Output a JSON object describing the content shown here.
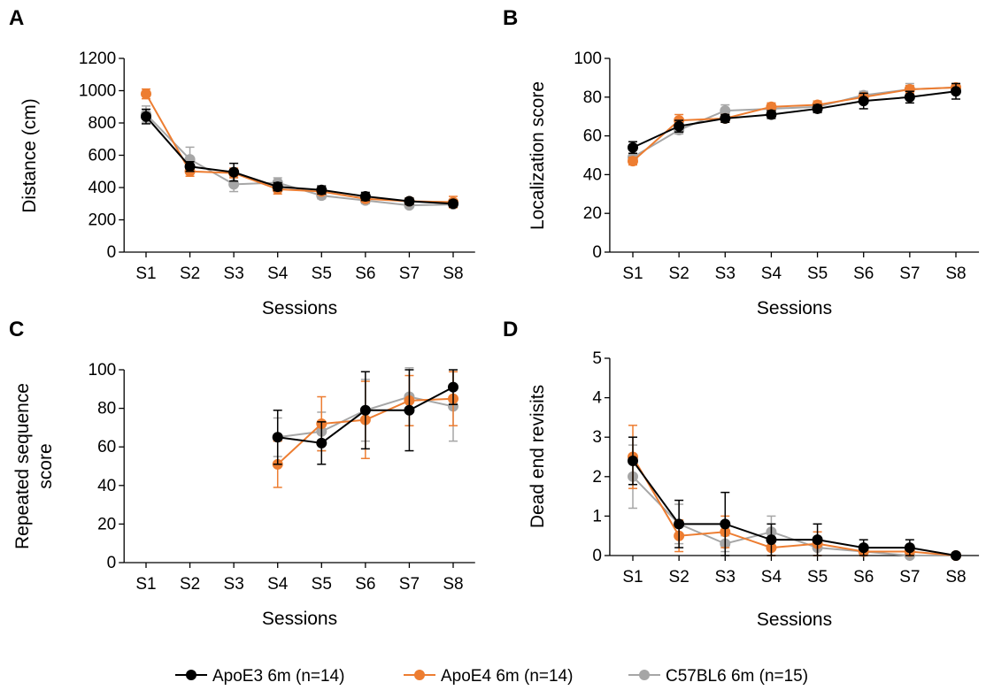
{
  "legend": [
    {
      "label": "ApoE3 6m (n=14)",
      "color": "#000000"
    },
    {
      "label": "ApoE4 6m (n=14)",
      "color": "#ED7D31"
    },
    {
      "label": "C57BL6 6m (n=15)",
      "color": "#A6A6A6"
    }
  ],
  "chart_data": [
    {
      "type": "line",
      "panel": "A",
      "xlabel": "Sessions",
      "ylabel": "Distance (cm)",
      "categories": [
        "S1",
        "S2",
        "S3",
        "S4",
        "S5",
        "S6",
        "S7",
        "S8"
      ],
      "ylim": [
        0,
        1200
      ],
      "yticks": [
        0,
        200,
        400,
        600,
        800,
        1000,
        1200
      ],
      "series": [
        {
          "name": "ApoE3 6m (n=14)",
          "color": "#000000",
          "values": [
            840,
            530,
            495,
            405,
            385,
            345,
            315,
            300
          ],
          "errors": [
            45,
            30,
            55,
            25,
            25,
            25,
            20,
            20
          ]
        },
        {
          "name": "ApoE4 6m (n=14)",
          "color": "#ED7D31",
          "values": [
            980,
            500,
            490,
            390,
            375,
            330,
            315,
            310
          ],
          "errors": [
            30,
            30,
            30,
            30,
            20,
            20,
            20,
            35
          ]
        },
        {
          "name": "C57BL6 6m (n=15)",
          "color": "#A6A6A6",
          "values": [
            855,
            575,
            420,
            430,
            350,
            320,
            290,
            295
          ],
          "errors": [
            50,
            75,
            45,
            30,
            20,
            20,
            15,
            15
          ]
        }
      ]
    },
    {
      "type": "line",
      "panel": "B",
      "xlabel": "Sessions",
      "ylabel": "Localization score",
      "categories": [
        "S1",
        "S2",
        "S3",
        "S4",
        "S5",
        "S6",
        "S7",
        "S8"
      ],
      "ylim": [
        0,
        100
      ],
      "yticks": [
        0,
        20,
        40,
        60,
        80,
        100
      ],
      "series": [
        {
          "name": "ApoE3 6m (n=14)",
          "color": "#000000",
          "values": [
            54,
            65,
            69,
            71,
            74,
            78,
            80,
            83
          ],
          "errors": [
            3,
            3,
            2,
            2,
            2,
            4,
            3,
            4
          ]
        },
        {
          "name": "ApoE4 6m (n=14)",
          "color": "#ED7D31",
          "values": [
            47,
            68,
            69,
            75,
            76,
            80,
            84,
            85
          ],
          "errors": [
            2,
            3,
            2,
            2,
            2,
            2,
            2,
            2
          ]
        },
        {
          "name": "C57BL6 6m (n=15)",
          "color": "#A6A6A6",
          "values": [
            49,
            63,
            73,
            74,
            75,
            81,
            84,
            85
          ],
          "errors": [
            2,
            2,
            3,
            2,
            2,
            2,
            3,
            2
          ]
        }
      ]
    },
    {
      "type": "line",
      "panel": "C",
      "xlabel": "Sessions",
      "ylabel": "Repeated sequence score",
      "ylabel_lines": [
        "Repeated sequence",
        "score"
      ],
      "categories": [
        "S1",
        "S2",
        "S3",
        "S4",
        "S5",
        "S6",
        "S7",
        "S8"
      ],
      "ylim": [
        0,
        100
      ],
      "yticks": [
        0,
        20,
        40,
        60,
        80,
        100
      ],
      "series": [
        {
          "name": "ApoE3 6m (n=14)",
          "color": "#000000",
          "values": [
            null,
            null,
            null,
            65,
            62,
            79,
            79,
            91
          ],
          "errors": [
            null,
            null,
            null,
            14,
            11,
            20,
            21,
            9
          ]
        },
        {
          "name": "ApoE4 6m (n=14)",
          "color": "#ED7D31",
          "values": [
            null,
            null,
            null,
            51,
            72,
            74,
            84,
            85
          ],
          "errors": [
            null,
            null,
            null,
            12,
            14,
            20,
            13,
            14
          ]
        },
        {
          "name": "C57BL6 6m (n=15)",
          "color": "#A6A6A6",
          "values": [
            null,
            null,
            null,
            65,
            68,
            79,
            86,
            81
          ],
          "errors": [
            null,
            null,
            null,
            10,
            10,
            16,
            15,
            18
          ]
        }
      ]
    },
    {
      "type": "line",
      "panel": "D",
      "xlabel": "Sessions",
      "ylabel": "Dead end revisits",
      "categories": [
        "S1",
        "S2",
        "S3",
        "S4",
        "S5",
        "S6",
        "S7",
        "S8"
      ],
      "ylim": [
        0,
        5
      ],
      "yticks": [
        0,
        1,
        2,
        3,
        4,
        5
      ],
      "series": [
        {
          "name": "ApoE3 6m (n=14)",
          "color": "#000000",
          "values": [
            2.4,
            0.8,
            0.8,
            0.4,
            0.4,
            0.2,
            0.2,
            0
          ],
          "errors": [
            0.6,
            0.6,
            0.8,
            0.4,
            0.4,
            0.2,
            0.2,
            0
          ]
        },
        {
          "name": "ApoE4 6m (n=14)",
          "color": "#ED7D31",
          "values": [
            2.5,
            0.5,
            0.6,
            0.2,
            0.3,
            0.1,
            0.1,
            0
          ],
          "errors": [
            0.8,
            0.4,
            0.4,
            0.2,
            0.3,
            0.1,
            0.1,
            0
          ]
        },
        {
          "name": "C57BL6 6m (n=15)",
          "color": "#A6A6A6",
          "values": [
            2.0,
            0.8,
            0.3,
            0.6,
            0.2,
            0.1,
            0.0,
            0
          ],
          "errors": [
            0.8,
            0.5,
            0.2,
            0.4,
            0.2,
            0.1,
            0.1,
            0
          ]
        }
      ]
    }
  ]
}
